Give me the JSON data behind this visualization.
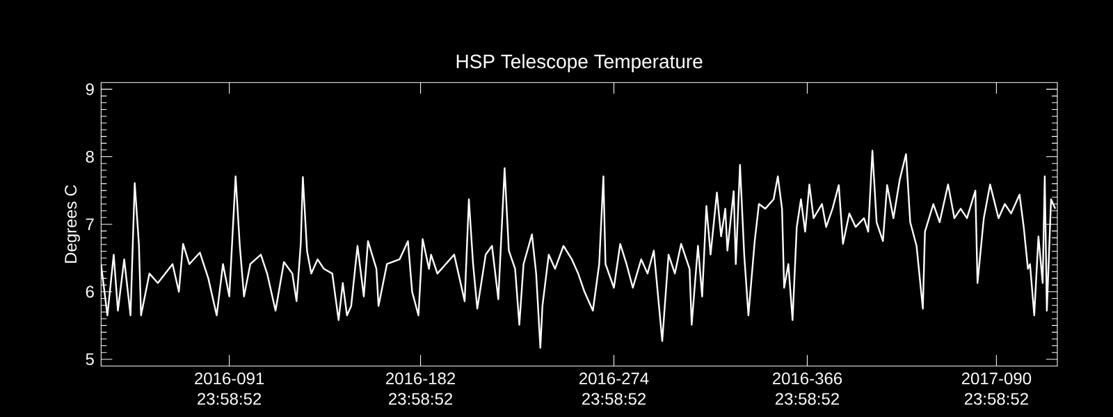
{
  "chart_data": {
    "type": "line",
    "title": "HSP Telescope Temperature",
    "ylabel": "Degrees C",
    "color": "#ffffff",
    "xlim": [
      "2016-01-31",
      "2017-04-30"
    ],
    "ylim": [
      4.9,
      9.1
    ],
    "xticks": [
      {
        "value": "2016-03-31T23:58",
        "label": "2016-091 23:58:52"
      },
      {
        "value": "2016-06-30T23:58",
        "label": "2016-182 23:58:52"
      },
      {
        "value": "2016-09-30T23:58",
        "label": "2016-274 23:58:52"
      },
      {
        "value": "2016-12-31T23:58",
        "label": "2016-366 23:58:52"
      },
      {
        "value": "2017-03-31T23:58",
        "label": "2017-090 23:58:52"
      }
    ],
    "yticks": [
      5,
      6,
      7,
      8,
      9
    ],
    "x": [
      "2016-01-31",
      "2016-02-03",
      "2016-02-06",
      "2016-02-08",
      "2016-02-11",
      "2016-02-14",
      "2016-02-16",
      "2016-02-18",
      "2016-02-19",
      "2016-02-23",
      "2016-02-27",
      "2016-03-05",
      "2016-03-08",
      "2016-03-10",
      "2016-03-13",
      "2016-03-18",
      "2016-03-22",
      "2016-03-26",
      "2016-03-29",
      "2016-04-01",
      "2016-04-04",
      "2016-04-06",
      "2016-04-08",
      "2016-04-11",
      "2016-04-16",
      "2016-04-19",
      "2016-04-23",
      "2016-04-27",
      "2016-05-01",
      "2016-05-03",
      "2016-05-05",
      "2016-05-06",
      "2016-05-08",
      "2016-05-10",
      "2016-05-13",
      "2016-05-16",
      "2016-05-20",
      "2016-05-23",
      "2016-05-25",
      "2016-05-27",
      "2016-05-29",
      "2016-06-01",
      "2016-06-04",
      "2016-06-06",
      "2016-06-10",
      "2016-06-11",
      "2016-06-15",
      "2016-06-21",
      "2016-06-25",
      "2016-06-27",
      "2016-06-30",
      "2016-07-02",
      "2016-07-05",
      "2016-07-06",
      "2016-07-09",
      "2016-07-13",
      "2016-07-17",
      "2016-07-22",
      "2016-07-24",
      "2016-07-26",
      "2016-07-28",
      "2016-08-01",
      "2016-08-04",
      "2016-08-07",
      "2016-08-10",
      "2016-08-12",
      "2016-08-15",
      "2016-08-17",
      "2016-08-19",
      "2016-08-23",
      "2016-08-25",
      "2016-08-27",
      "2016-08-28",
      "2016-08-31",
      "2016-09-03",
      "2016-09-07",
      "2016-09-11",
      "2016-09-14",
      "2016-09-17",
      "2016-09-21",
      "2016-09-24",
      "2016-09-26",
      "2016-09-27",
      "2016-10-01",
      "2016-10-04",
      "2016-10-07",
      "2016-10-10",
      "2016-10-14",
      "2016-10-17",
      "2016-10-20",
      "2016-10-24",
      "2016-10-27",
      "2016-10-30",
      "2016-11-02",
      "2016-11-06",
      "2016-11-07",
      "2016-11-10",
      "2016-11-12",
      "2016-11-14",
      "2016-11-16",
      "2016-11-19",
      "2016-11-21",
      "2016-11-23",
      "2016-11-24",
      "2016-11-27",
      "2016-11-28",
      "2016-11-30",
      "2016-12-02",
      "2016-12-04",
      "2016-12-07",
      "2016-12-09",
      "2016-12-12",
      "2016-12-16",
      "2016-12-18",
      "2016-12-20",
      "2016-12-21",
      "2016-12-23",
      "2016-12-25",
      "2016-12-27",
      "2016-12-29",
      "2016-12-31",
      "2017-01-02",
      "2017-01-04",
      "2017-01-08",
      "2017-01-10",
      "2017-01-13",
      "2017-01-16",
      "2017-01-18",
      "2017-01-21",
      "2017-01-24",
      "2017-01-28",
      "2017-01-30",
      "2017-02-01",
      "2017-02-03",
      "2017-02-06",
      "2017-02-08",
      "2017-02-11",
      "2017-02-14",
      "2017-02-17",
      "2017-02-19",
      "2017-02-22",
      "2017-02-25",
      "2017-02-26",
      "2017-03-02",
      "2017-03-05",
      "2017-03-09",
      "2017-03-12",
      "2017-03-15",
      "2017-03-18",
      "2017-03-22",
      "2017-03-23",
      "2017-03-26",
      "2017-03-29",
      "2017-04-02",
      "2017-04-05",
      "2017-04-08",
      "2017-04-12",
      "2017-04-14",
      "2017-04-16",
      "2017-04-17",
      "2017-04-19",
      "2017-04-21",
      "2017-04-23",
      "2017-04-24",
      "2017-04-25",
      "2017-04-27",
      "2017-04-29"
    ],
    "values": [
      6.4,
      5.65,
      6.55,
      5.72,
      6.48,
      5.65,
      7.61,
      6.7,
      5.65,
      6.27,
      6.13,
      6.41,
      6.0,
      6.71,
      6.41,
      6.58,
      6.2,
      5.65,
      6.41,
      5.93,
      7.71,
      6.68,
      5.93,
      6.41,
      6.55,
      6.27,
      5.72,
      6.44,
      6.27,
      5.86,
      6.71,
      7.7,
      6.6,
      6.27,
      6.48,
      6.34,
      6.27,
      5.58,
      6.13,
      5.65,
      5.79,
      6.68,
      5.93,
      6.75,
      6.34,
      5.79,
      6.41,
      6.48,
      6.75,
      6.0,
      5.65,
      6.78,
      6.34,
      6.55,
      6.27,
      6.41,
      6.55,
      5.86,
      7.37,
      6.41,
      5.75,
      6.55,
      6.68,
      5.89,
      7.83,
      6.61,
      6.34,
      5.51,
      6.41,
      6.85,
      6.27,
      5.17,
      5.79,
      6.55,
      6.34,
      6.68,
      6.48,
      6.27,
      6.0,
      5.72,
      6.41,
      7.71,
      6.41,
      6.06,
      6.71,
      6.41,
      6.06,
      6.48,
      6.27,
      6.61,
      5.27,
      6.55,
      6.27,
      6.71,
      6.34,
      5.51,
      6.68,
      5.93,
      7.27,
      6.55,
      7.47,
      6.82,
      7.23,
      6.61,
      7.49,
      6.41,
      7.88,
      6.55,
      5.65,
      6.75,
      7.3,
      7.23,
      7.37,
      7.71,
      7.23,
      6.06,
      6.41,
      5.58,
      6.96,
      7.37,
      6.89,
      7.59,
      7.09,
      7.3,
      6.96,
      7.23,
      7.58,
      6.71,
      7.16,
      6.96,
      7.09,
      6.89,
      8.09,
      7.03,
      6.75,
      7.58,
      7.09,
      7.66,
      8.04,
      7.03,
      6.68,
      5.75,
      6.89,
      7.3,
      7.03,
      7.59,
      7.09,
      7.23,
      7.09,
      7.5,
      6.13,
      7.09,
      7.59,
      7.09,
      7.3,
      7.16,
      7.44,
      6.96,
      6.34,
      6.41,
      5.65,
      6.82,
      6.13,
      7.71,
      5.72,
      7.37,
      7.23
    ]
  }
}
